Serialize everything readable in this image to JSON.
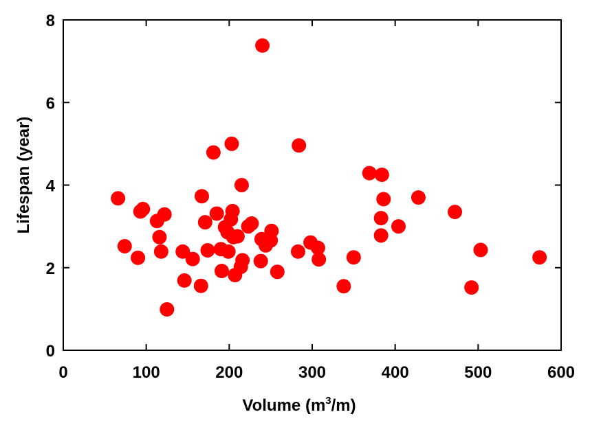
{
  "chart_data": {
    "type": "scatter",
    "title": "",
    "xlabel": "Volume (m",
    "xlabel_sup": "3",
    "xlabel_tail": "/m)",
    "ylabel": "Lifespan (year)",
    "xlim": [
      0,
      600
    ],
    "ylim": [
      0,
      8
    ],
    "x_ticks": [
      "0",
      "100",
      "200",
      "300",
      "400",
      "500",
      "600"
    ],
    "y_ticks": [
      "0",
      "2",
      "4",
      "6",
      "8"
    ],
    "x_tick_values": [
      0,
      100,
      200,
      300,
      400,
      500,
      600
    ],
    "y_tick_values": [
      0,
      2,
      4,
      6,
      8
    ],
    "grid": false,
    "marker_color": "#ff0000",
    "series": [
      {
        "name": "Lifespan",
        "points": [
          [
            66,
            3.68
          ],
          [
            74,
            2.52
          ],
          [
            90,
            2.24
          ],
          [
            93,
            3.36
          ],
          [
            96,
            3.42
          ],
          [
            113,
            3.13
          ],
          [
            116,
            2.74
          ],
          [
            118,
            2.39
          ],
          [
            122,
            3.29
          ],
          [
            125,
            0.99
          ],
          [
            144,
            2.39
          ],
          [
            146,
            1.69
          ],
          [
            156,
            2.21
          ],
          [
            166,
            1.56
          ],
          [
            167,
            3.73
          ],
          [
            171,
            3.1
          ],
          [
            174,
            2.42
          ],
          [
            181,
            4.79
          ],
          [
            185,
            3.31
          ],
          [
            190,
            2.45
          ],
          [
            191,
            1.92
          ],
          [
            195,
            2.98
          ],
          [
            198,
            2.86
          ],
          [
            199,
            2.39
          ],
          [
            202,
            3.17
          ],
          [
            203,
            5.0
          ],
          [
            204,
            3.37
          ],
          [
            205,
            2.74
          ],
          [
            207,
            1.82
          ],
          [
            210,
            2.76
          ],
          [
            214,
            2.02
          ],
          [
            215,
            4.0
          ],
          [
            216,
            2.18
          ],
          [
            223,
            3.0
          ],
          [
            227,
            3.07
          ],
          [
            238,
            2.16
          ],
          [
            239,
            2.69
          ],
          [
            240,
            7.38
          ],
          [
            244,
            2.54
          ],
          [
            250,
            2.66
          ],
          [
            251,
            2.89
          ],
          [
            258,
            1.9
          ],
          [
            283,
            2.39
          ],
          [
            284,
            4.96
          ],
          [
            298,
            2.61
          ],
          [
            307,
            2.48
          ],
          [
            308,
            2.2
          ],
          [
            338,
            1.55
          ],
          [
            350,
            2.25
          ],
          [
            369,
            4.29
          ],
          [
            383,
            2.78
          ],
          [
            383,
            3.2
          ],
          [
            384,
            4.25
          ],
          [
            386,
            3.66
          ],
          [
            404,
            3.0
          ],
          [
            428,
            3.7
          ],
          [
            472,
            3.35
          ],
          [
            492,
            1.52
          ],
          [
            503,
            2.43
          ],
          [
            574,
            2.25
          ]
        ]
      }
    ]
  }
}
